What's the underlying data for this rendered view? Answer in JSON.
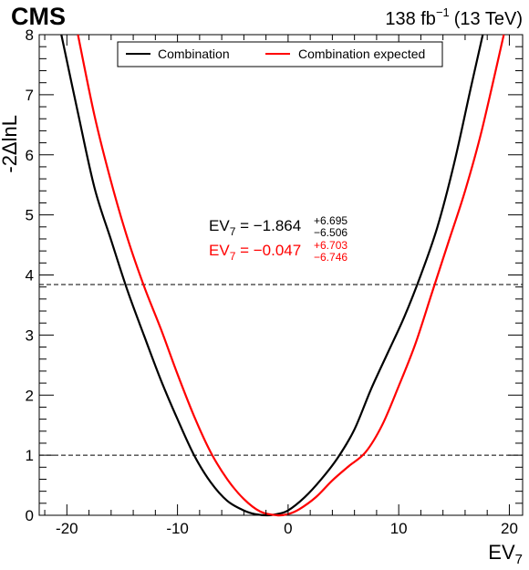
{
  "header": {
    "experiment": "CMS",
    "lumi_value": "138 fb",
    "lumi_exp": "−1",
    "energy": "(13 TeV)"
  },
  "chart_data": {
    "type": "line",
    "xlabel_main": "EV",
    "xlabel_sub": "7",
    "ylabel": "-2ΔlnL",
    "xlim": [
      -22.5,
      21.2
    ],
    "ylim": [
      0,
      8
    ],
    "xticks": [
      -20,
      -10,
      0,
      10,
      20
    ],
    "xtick_labels": [
      "-20",
      "-10",
      "0",
      "10",
      "20"
    ],
    "yticks": [
      0,
      1,
      2,
      3,
      4,
      5,
      6,
      7,
      8
    ],
    "ytick_labels": [
      "0",
      "1",
      "2",
      "3",
      "4",
      "5",
      "6",
      "7",
      "8"
    ],
    "reference_lines": [
      1.0,
      3.84
    ],
    "legend_position": "top-center",
    "series": [
      {
        "name": "Combination",
        "color": "#000000",
        "x": [
          -20.5,
          -19.0,
          -17.5,
          -16.0,
          -14.5,
          -13.0,
          -11.5,
          -10.0,
          -8.5,
          -7.0,
          -5.5,
          -4.0,
          -3.0,
          -1.9,
          -1.0,
          0.0,
          1.5,
          3.0,
          4.5,
          6.0,
          7.5,
          9.0,
          10.5,
          12.0,
          13.5,
          15.0,
          16.5,
          17.6
        ],
        "y": [
          8.0,
          6.7,
          5.45,
          4.58,
          3.73,
          2.98,
          2.25,
          1.6,
          1.0,
          0.55,
          0.24,
          0.08,
          0.02,
          0.0,
          0.02,
          0.08,
          0.3,
          0.6,
          0.96,
          1.43,
          2.1,
          2.7,
          3.3,
          4.0,
          4.8,
          5.85,
          7.1,
          8.0
        ]
      },
      {
        "name": "Combination expected",
        "color": "#ff0000",
        "x": [
          -19.0,
          -17.5,
          -16.0,
          -14.5,
          -13.0,
          -11.5,
          -10.0,
          -8.5,
          -7.0,
          -5.5,
          -4.0,
          -2.5,
          -1.0,
          0.0,
          1.0,
          2.5,
          4.0,
          5.5,
          7.0,
          8.5,
          10.0,
          11.5,
          13.0,
          14.5,
          16.0,
          17.5,
          19.5
        ],
        "y": [
          8.0,
          6.65,
          5.55,
          4.6,
          3.8,
          3.1,
          2.35,
          1.65,
          1.05,
          0.6,
          0.27,
          0.06,
          0.0,
          0.02,
          0.1,
          0.3,
          0.58,
          0.82,
          1.05,
          1.5,
          2.15,
          2.85,
          3.7,
          4.55,
          5.4,
          6.4,
          8.0
        ]
      }
    ],
    "annotations": [
      {
        "color": "#000000",
        "label": "EV",
        "sub": "7",
        "eq": " = −1.864",
        "sup": "+6.695",
        "low": "−6.506"
      },
      {
        "color": "#ff0000",
        "label": "EV",
        "sub": "7",
        "eq": " = −0.047",
        "sup": "+6.703",
        "low": "−6.746"
      }
    ]
  }
}
